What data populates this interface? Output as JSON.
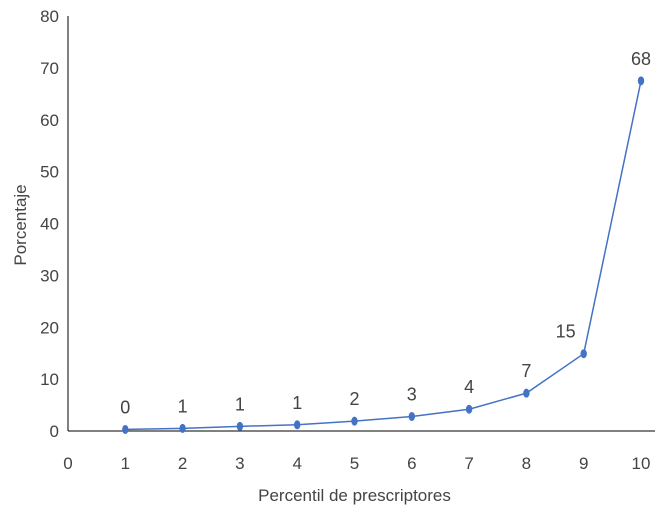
{
  "chart_data": {
    "type": "line",
    "title": "",
    "xlabel": "Percentil de prescriptores",
    "ylabel": "Porcentaje",
    "x_ticks": [
      "0",
      "1",
      "2",
      "3",
      "4",
      "5",
      "6",
      "7",
      "8",
      "9",
      "10"
    ],
    "y_ticks": [
      "0",
      "10",
      "20",
      "30",
      "40",
      "50",
      "60",
      "70",
      "80"
    ],
    "xlim": [
      0,
      10
    ],
    "ylim": [
      0,
      80
    ],
    "grid": false,
    "legend": "none",
    "series": [
      {
        "x": [
          1,
          2,
          3,
          4,
          5,
          6,
          7,
          8,
          9,
          10
        ],
        "values": [
          0.3,
          0.5,
          0.9,
          1.2,
          1.9,
          2.8,
          4.2,
          7.3,
          14.9,
          67.5
        ],
        "labels": [
          "0",
          "1",
          "1",
          "1",
          "2",
          "3",
          "4",
          "7",
          "15",
          "68"
        ],
        "color": "#4472C4"
      }
    ]
  }
}
